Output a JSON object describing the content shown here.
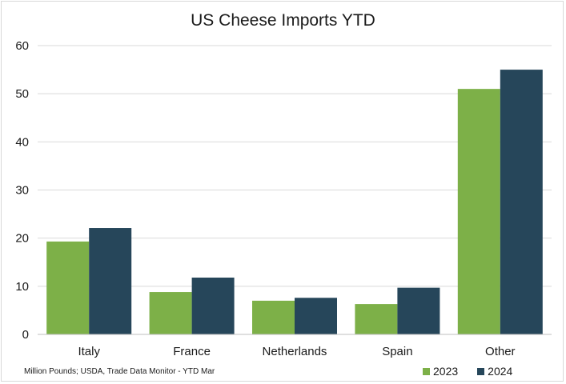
{
  "chart_data": {
    "type": "bar",
    "title": "US Cheese Imports YTD",
    "categories": [
      "Italy",
      "France",
      "Netherlands",
      "Spain",
      "Other"
    ],
    "series": [
      {
        "name": "2023",
        "color": "#7db048",
        "values": [
          19.3,
          8.8,
          7.0,
          6.3,
          51.0
        ]
      },
      {
        "name": "2024",
        "color": "#26465a",
        "values": [
          22.1,
          11.8,
          7.6,
          9.7,
          55.0
        ]
      }
    ],
    "ylim": [
      0,
      60
    ],
    "yticks": [
      "0",
      "10",
      "20",
      "30",
      "40",
      "50",
      "60"
    ],
    "grid": true,
    "legend": "bottom-right",
    "source_note": "Million Pounds; USDA, Trade Data Monitor - YTD Mar"
  }
}
